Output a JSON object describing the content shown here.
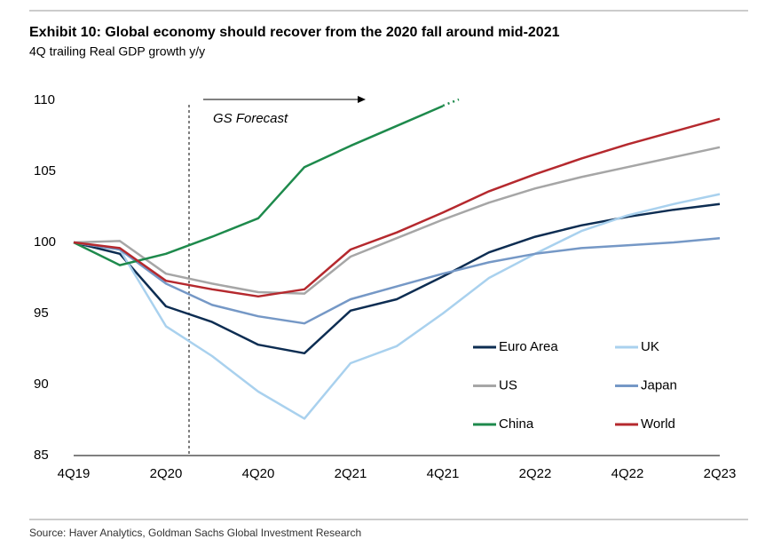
{
  "chart_data": {
    "type": "line",
    "title": "Exhibit 10: Global economy should recover from the 2020 fall around mid-2021",
    "subtitle": "4Q trailing Real GDP growth y/y",
    "annotation": "GS Forecast",
    "source": "Source: Haver Analytics, Goldman Sachs Global Investment Research",
    "categories": [
      "4Q19",
      null,
      "2Q20",
      null,
      "4Q20",
      null,
      "2Q21",
      null,
      "4Q21",
      null,
      "2Q22",
      null,
      "4Q22",
      null,
      "2Q23"
    ],
    "ylim": [
      85,
      110
    ],
    "yticks": [
      85,
      90,
      95,
      100,
      105,
      110
    ],
    "grid": false,
    "series": [
      {
        "name": "Euro Area",
        "color": "#0d2d52",
        "values": [
          100,
          99.2,
          95.5,
          94.4,
          92.8,
          92.2,
          95.2,
          96.0,
          97.6,
          99.3,
          100.4,
          101.2,
          101.8,
          102.3,
          102.7
        ]
      },
      {
        "name": "UK",
        "color": "#a9d1ee",
        "values": [
          100,
          99.5,
          94.1,
          92.0,
          89.5,
          87.6,
          91.5,
          92.7,
          95.0,
          97.5,
          99.2,
          100.8,
          101.9,
          102.7,
          103.4
        ]
      },
      {
        "name": "US",
        "color": "#a6a6a6",
        "values": [
          100,
          100.1,
          97.8,
          97.1,
          96.5,
          96.4,
          99.0,
          100.3,
          101.6,
          102.8,
          103.8,
          104.6,
          105.3,
          106.0,
          106.7
        ]
      },
      {
        "name": "Japan",
        "color": "#7598c6",
        "values": [
          100,
          99.5,
          97.1,
          95.6,
          94.8,
          94.3,
          96.0,
          96.9,
          97.8,
          98.6,
          99.2,
          99.6,
          99.8,
          100.0,
          100.3
        ]
      },
      {
        "name": "China",
        "color": "#1e8a4c",
        "values": [
          100,
          98.4,
          99.2,
          100.4,
          101.7,
          105.3,
          106.8,
          108.2,
          109.6,
          null,
          null,
          null,
          null,
          null,
          null
        ]
      },
      {
        "name": "World",
        "color": "#b5292e",
        "values": [
          100,
          99.6,
          97.3,
          96.7,
          96.2,
          96.7,
          99.5,
          100.7,
          102.1,
          103.6,
          104.8,
          105.9,
          106.9,
          107.8,
          108.7
        ]
      }
    ]
  }
}
